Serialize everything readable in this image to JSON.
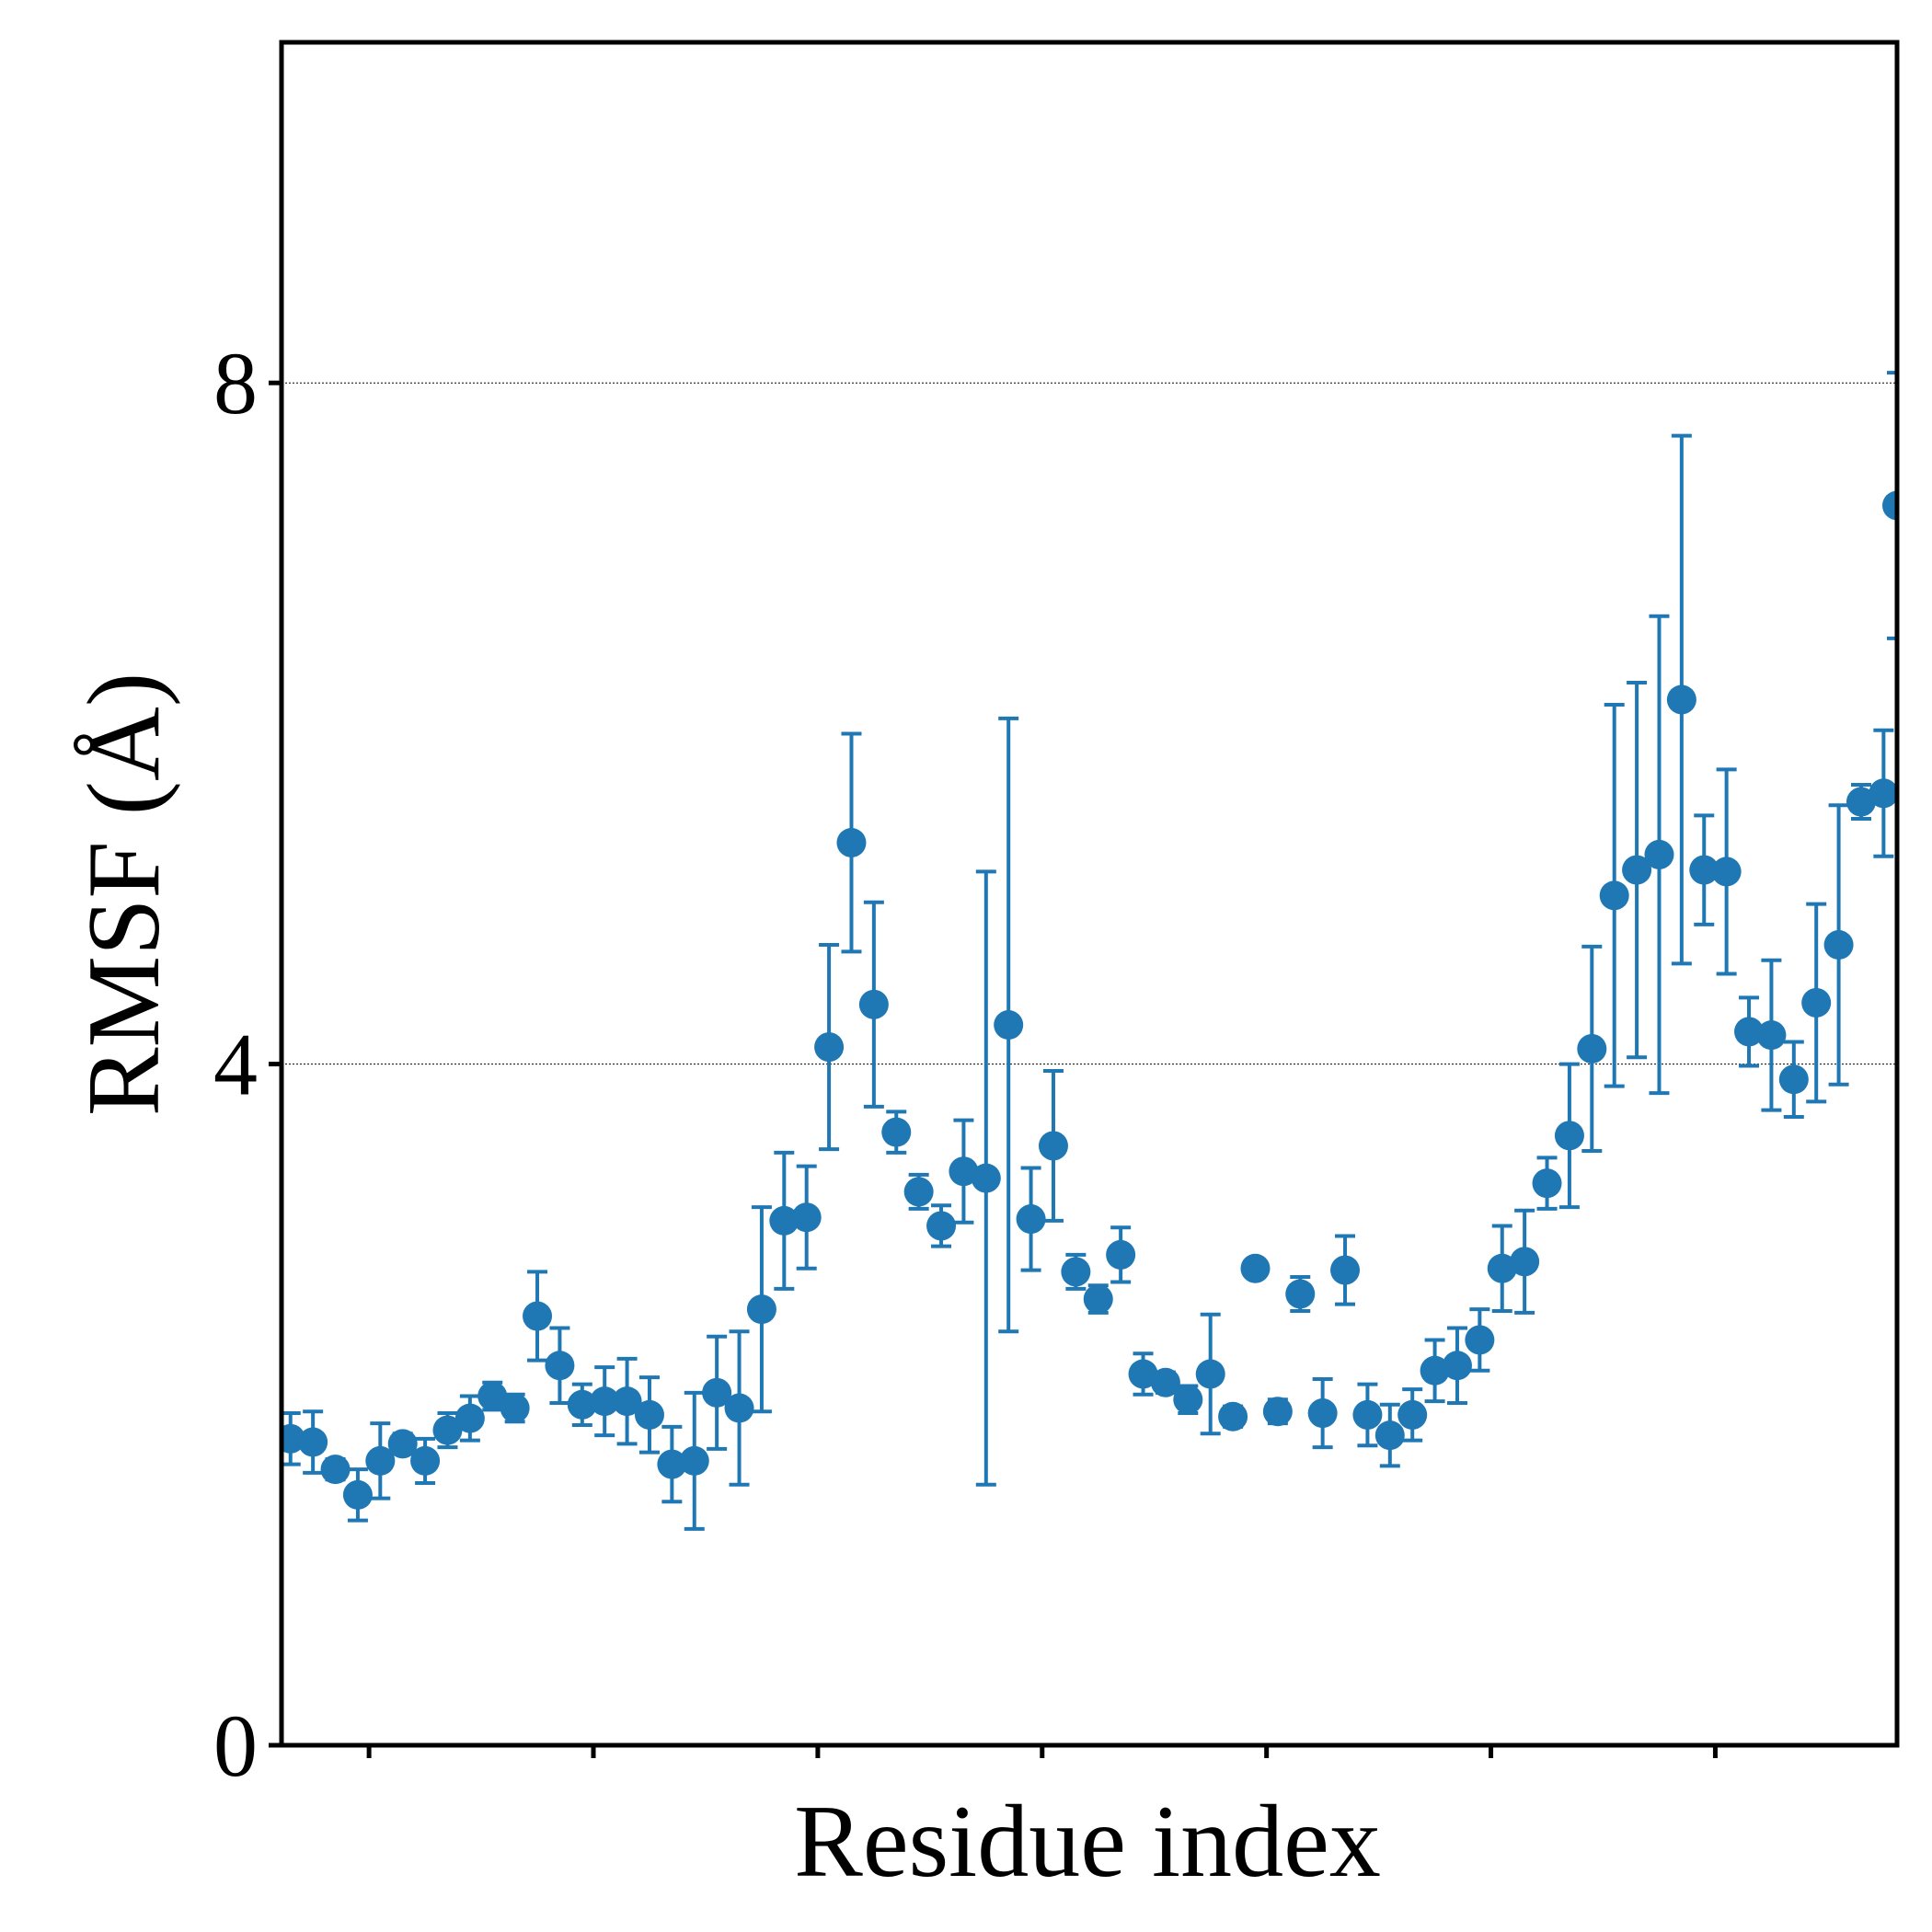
{
  "chart_data": {
    "type": "scatter",
    "title": "",
    "xlabel": "Residue index",
    "ylabel": "RMSF (Å)",
    "ylim": [
      0,
      10
    ],
    "xlim": [
      0.6,
      72.6
    ],
    "yticks": [
      0,
      4,
      8
    ],
    "ytick_labels": [
      "0",
      "4",
      "8"
    ],
    "xticks": [
      4.5,
      14.5,
      24.5,
      34.5,
      44.5,
      54.5,
      64.5
    ],
    "grid": "horizontal dotted lines at y ticks",
    "legend": "none",
    "error_bars": true,
    "color": "#1f77b4",
    "series": [
      {
        "x": [
          1,
          2,
          3,
          4,
          5,
          6,
          7,
          8,
          9,
          10,
          11,
          12,
          13,
          14,
          15,
          16,
          17,
          18,
          19,
          20,
          21,
          22,
          23,
          24,
          25,
          26,
          27,
          28,
          29,
          30,
          31,
          32,
          33,
          34,
          35,
          36,
          37,
          38,
          39,
          40,
          41,
          42,
          43,
          44,
          45,
          46,
          47,
          48,
          49,
          50,
          51,
          52,
          53,
          54,
          55,
          56,
          57,
          58,
          59,
          60,
          61,
          62,
          63,
          64,
          65,
          66,
          67,
          68,
          69,
          70,
          71,
          72
        ],
        "y": [
          1.8,
          1.78,
          1.62,
          1.47,
          1.67,
          1.77,
          1.67,
          1.85,
          1.92,
          2.05,
          1.98,
          2.52,
          2.23,
          2.0,
          2.02,
          2.02,
          1.94,
          1.65,
          1.67,
          2.07,
          1.98,
          2.56,
          3.08,
          3.1,
          4.1,
          5.3,
          4.35,
          3.6,
          3.25,
          3.05,
          3.37,
          3.33,
          4.23,
          3.09,
          3.52,
          2.78,
          2.62,
          2.88,
          2.18,
          2.13,
          2.03,
          2.18,
          1.93,
          2.8,
          1.96,
          2.65,
          1.95,
          2.79,
          1.94,
          1.82,
          1.94,
          2.2,
          2.23,
          2.38,
          2.8,
          2.84,
          3.3,
          3.58,
          4.09,
          4.99,
          5.14,
          5.23,
          6.14,
          5.14,
          5.13,
          4.19,
          4.17,
          3.91,
          4.36,
          4.7,
          5.54,
          5.59
        ],
        "yerr": [
          0.15,
          0.18,
          0.06,
          0.15,
          0.22,
          0.06,
          0.13,
          0.1,
          0.13,
          0.08,
          0.08,
          0.26,
          0.22,
          0.12,
          0.2,
          0.25,
          0.22,
          0.22,
          0.4,
          0.33,
          0.45,
          0.6,
          0.4,
          0.3,
          0.6,
          0.64,
          0.6,
          0.12,
          0.1,
          0.12,
          0.3,
          1.8,
          1.8,
          0.3,
          0.44,
          0.1,
          0.08,
          0.16,
          0.12,
          0.06,
          0.08,
          0.35,
          0.06,
          0.05,
          0.07,
          0.1,
          0.2,
          0.2,
          0.18,
          0.18,
          0.15,
          0.18,
          0.22,
          0.18,
          0.25,
          0.3,
          0.15,
          0.42,
          0.6,
          1.12,
          1.1,
          1.4,
          1.55,
          0.32,
          0.6,
          0.2,
          0.44,
          0.22,
          0.58,
          0.82,
          0.1,
          0.37
        ]
      }
    ],
    "partial_point": {
      "x": 72.6,
      "y": 7.28,
      "yerr": 0.78
    }
  }
}
